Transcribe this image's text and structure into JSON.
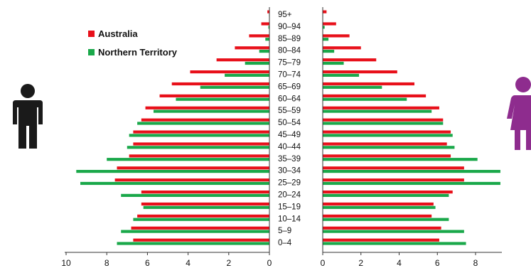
{
  "chart_data": {
    "type": "bar",
    "layout": "population pyramid",
    "categories": [
      "0–4",
      "5–9",
      "10–14",
      "15–19",
      "20–24",
      "25–29",
      "30–34",
      "35–39",
      "40–44",
      "45–49",
      "50–54",
      "55–59",
      "60–64",
      "65–69",
      "70–74",
      "75–79",
      "80–84",
      "85–89",
      "90–94",
      "95+"
    ],
    "left_xlim": [
      10,
      0
    ],
    "left_ticks": [
      "10",
      "8",
      "6",
      "4",
      "2",
      "0"
    ],
    "right_xlim": [
      0,
      9.3
    ],
    "right_ticks": [
      "0",
      "2",
      "4",
      "6",
      "8"
    ],
    "series": [
      {
        "name": "Australia",
        "color": "#e8101a",
        "left": [
          6.7,
          6.8,
          6.5,
          6.3,
          6.3,
          7.6,
          7.5,
          6.9,
          6.7,
          6.7,
          6.3,
          6.1,
          5.4,
          4.8,
          3.9,
          2.6,
          1.7,
          1.0,
          0.4,
          0.1
        ],
        "right": [
          6.1,
          6.2,
          5.7,
          5.8,
          6.8,
          7.4,
          7.4,
          6.7,
          6.5,
          6.7,
          6.3,
          6.1,
          5.4,
          4.8,
          3.9,
          2.8,
          2.0,
          1.4,
          0.7,
          0.2
        ]
      },
      {
        "name": "Northern Territory",
        "color": "#1aa84a",
        "left": [
          7.5,
          7.3,
          6.7,
          6.2,
          7.3,
          9.3,
          9.5,
          8.0,
          7.0,
          6.9,
          6.5,
          5.7,
          4.6,
          3.4,
          2.2,
          1.2,
          0.5,
          0.2,
          0.05,
          0.02
        ],
        "right": [
          7.5,
          7.4,
          6.6,
          5.9,
          6.6,
          9.3,
          9.3,
          8.1,
          6.9,
          6.8,
          6.3,
          5.7,
          4.4,
          3.1,
          1.9,
          1.1,
          0.6,
          0.3,
          0.1,
          0.02
        ]
      }
    ],
    "legend_position": "top-left",
    "grid": false
  },
  "legend": {
    "items": [
      {
        "label": "Australia",
        "color": "#e8101a"
      },
      {
        "label": "Northern Territory",
        "color": "#1aa84a"
      }
    ]
  },
  "icons": {
    "male": {
      "name": "male-person-icon",
      "color": "#1a1a1a"
    },
    "female": {
      "name": "female-person-icon",
      "color": "#8e2c8e"
    }
  }
}
